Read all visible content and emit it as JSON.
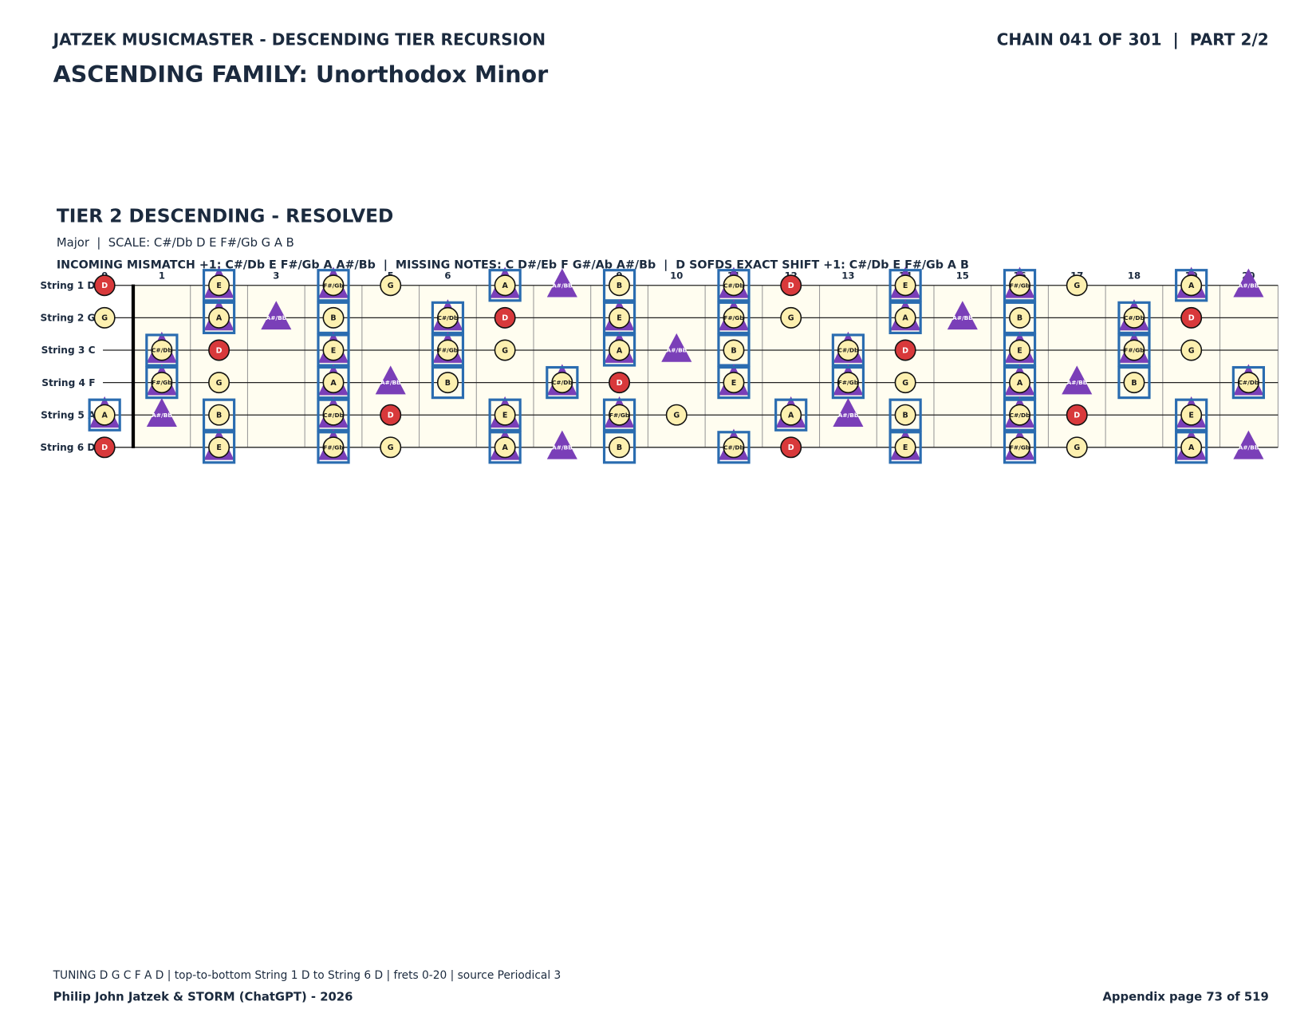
{
  "header": {
    "title": "JATZEK MUSICMASTER - DESCENDING TIER RECURSION",
    "chain": "CHAIN 041 OF 301  |  PART 2/2",
    "family": "ASCENDING FAMILY: Unorthodox Minor"
  },
  "section": {
    "title": "TIER 2 DESCENDING - RESOLVED",
    "scale": "Major  |  SCALE: C#/Db D E F#/Gb G A B",
    "analysis": "INCOMING MISMATCH +1: C#/Db E F#/Gb A A#/Bb  |  MISSING NOTES: C D#/Eb F G#/Ab A#/Bb  |  D SOFDS EXACT SHIFT +1: C#/Db E F#/Gb A B"
  },
  "fretboard": {
    "frets": [
      0,
      1,
      2,
      3,
      4,
      5,
      6,
      7,
      8,
      9,
      10,
      11,
      12,
      13,
      14,
      15,
      16,
      17,
      18,
      19,
      20
    ],
    "styles": {
      "root": {
        "shape": "circle",
        "fill": "#d8393b",
        "text": "#ffffff"
      },
      "plain": {
        "shape": "circle",
        "fill": "#fdf0b0",
        "text": "#1a1a1a"
      },
      "boxed": {
        "shape": "circle",
        "fill": "#fdf0b0",
        "text": "#1a1a1a",
        "box": "#2a6cb0"
      },
      "boxed-tri": {
        "shape": "circle",
        "fill": "#fdf0b0",
        "text": "#1a1a1a",
        "box": "#2a6cb0",
        "under": "#7a3fb8"
      },
      "tri": {
        "shape": "triangle",
        "fill": "#7a3fb8",
        "text": "#ffffff"
      }
    },
    "strings": [
      {
        "label": "String 1 D",
        "notes": [
          {
            "fret": 0,
            "note": "D",
            "style": "root"
          },
          {
            "fret": 2,
            "note": "E",
            "style": "boxed-tri"
          },
          {
            "fret": 4,
            "note": "F#/Gb",
            "style": "boxed-tri"
          },
          {
            "fret": 5,
            "note": "G",
            "style": "plain"
          },
          {
            "fret": 7,
            "note": "A",
            "style": "boxed-tri"
          },
          {
            "fret": 8,
            "note": "A#/Bb",
            "style": "tri"
          },
          {
            "fret": 9,
            "note": "B",
            "style": "boxed"
          },
          {
            "fret": 11,
            "note": "C#/Db",
            "style": "boxed-tri"
          },
          {
            "fret": 12,
            "note": "D",
            "style": "root"
          },
          {
            "fret": 14,
            "note": "E",
            "style": "boxed-tri"
          },
          {
            "fret": 16,
            "note": "F#/Gb",
            "style": "boxed-tri"
          },
          {
            "fret": 17,
            "note": "G",
            "style": "plain"
          },
          {
            "fret": 19,
            "note": "A",
            "style": "boxed-tri"
          },
          {
            "fret": 20,
            "note": "A#/Bb",
            "style": "tri"
          }
        ]
      },
      {
        "label": "String 2 G",
        "notes": [
          {
            "fret": 0,
            "note": "G",
            "style": "plain"
          },
          {
            "fret": 2,
            "note": "A",
            "style": "boxed-tri"
          },
          {
            "fret": 3,
            "note": "A#/Bb",
            "style": "tri"
          },
          {
            "fret": 4,
            "note": "B",
            "style": "boxed"
          },
          {
            "fret": 6,
            "note": "C#/Db",
            "style": "boxed-tri"
          },
          {
            "fret": 7,
            "note": "D",
            "style": "root"
          },
          {
            "fret": 9,
            "note": "E",
            "style": "boxed-tri"
          },
          {
            "fret": 11,
            "note": "F#/Gb",
            "style": "boxed-tri"
          },
          {
            "fret": 12,
            "note": "G",
            "style": "plain"
          },
          {
            "fret": 14,
            "note": "A",
            "style": "boxed-tri"
          },
          {
            "fret": 15,
            "note": "A#/Bb",
            "style": "tri"
          },
          {
            "fret": 16,
            "note": "B",
            "style": "boxed"
          },
          {
            "fret": 18,
            "note": "C#/Db",
            "style": "boxed-tri"
          },
          {
            "fret": 19,
            "note": "D",
            "style": "root"
          }
        ]
      },
      {
        "label": "String 3 C",
        "notes": [
          {
            "fret": 1,
            "note": "C#/Db",
            "style": "boxed-tri"
          },
          {
            "fret": 2,
            "note": "D",
            "style": "root"
          },
          {
            "fret": 4,
            "note": "E",
            "style": "boxed-tri"
          },
          {
            "fret": 6,
            "note": "F#/Gb",
            "style": "boxed-tri"
          },
          {
            "fret": 7,
            "note": "G",
            "style": "plain"
          },
          {
            "fret": 9,
            "note": "A",
            "style": "boxed-tri"
          },
          {
            "fret": 10,
            "note": "A#/Bb",
            "style": "tri"
          },
          {
            "fret": 11,
            "note": "B",
            "style": "boxed"
          },
          {
            "fret": 13,
            "note": "C#/Db",
            "style": "boxed-tri"
          },
          {
            "fret": 14,
            "note": "D",
            "style": "root"
          },
          {
            "fret": 16,
            "note": "E",
            "style": "boxed-tri"
          },
          {
            "fret": 18,
            "note": "F#/Gb",
            "style": "boxed-tri"
          },
          {
            "fret": 19,
            "note": "G",
            "style": "plain"
          }
        ]
      },
      {
        "label": "String 4 F",
        "notes": [
          {
            "fret": 1,
            "note": "F#/Gb",
            "style": "boxed-tri"
          },
          {
            "fret": 2,
            "note": "G",
            "style": "plain"
          },
          {
            "fret": 4,
            "note": "A",
            "style": "boxed-tri"
          },
          {
            "fret": 5,
            "note": "A#/Bb",
            "style": "tri"
          },
          {
            "fret": 6,
            "note": "B",
            "style": "boxed"
          },
          {
            "fret": 8,
            "note": "C#/Db",
            "style": "boxed-tri"
          },
          {
            "fret": 9,
            "note": "D",
            "style": "root"
          },
          {
            "fret": 11,
            "note": "E",
            "style": "boxed-tri"
          },
          {
            "fret": 13,
            "note": "F#/Gb",
            "style": "boxed-tri"
          },
          {
            "fret": 14,
            "note": "G",
            "style": "plain"
          },
          {
            "fret": 16,
            "note": "A",
            "style": "boxed-tri"
          },
          {
            "fret": 17,
            "note": "A#/Bb",
            "style": "tri"
          },
          {
            "fret": 18,
            "note": "B",
            "style": "boxed"
          },
          {
            "fret": 20,
            "note": "C#/Db",
            "style": "boxed-tri"
          }
        ]
      },
      {
        "label": "String 5 A",
        "notes": [
          {
            "fret": 0,
            "note": "A",
            "style": "boxed-tri"
          },
          {
            "fret": 1,
            "note": "A#/Bb",
            "style": "tri"
          },
          {
            "fret": 2,
            "note": "B",
            "style": "boxed"
          },
          {
            "fret": 4,
            "note": "C#/Db",
            "style": "boxed-tri"
          },
          {
            "fret": 5,
            "note": "D",
            "style": "root"
          },
          {
            "fret": 7,
            "note": "E",
            "style": "boxed-tri"
          },
          {
            "fret": 9,
            "note": "F#/Gb",
            "style": "boxed-tri"
          },
          {
            "fret": 10,
            "note": "G",
            "style": "plain"
          },
          {
            "fret": 12,
            "note": "A",
            "style": "boxed-tri"
          },
          {
            "fret": 13,
            "note": "A#/Bb",
            "style": "tri"
          },
          {
            "fret": 14,
            "note": "B",
            "style": "boxed"
          },
          {
            "fret": 16,
            "note": "C#/Db",
            "style": "boxed-tri"
          },
          {
            "fret": 17,
            "note": "D",
            "style": "root"
          },
          {
            "fret": 19,
            "note": "E",
            "style": "boxed-tri"
          }
        ]
      },
      {
        "label": "String 6 D",
        "notes": [
          {
            "fret": 0,
            "note": "D",
            "style": "root"
          },
          {
            "fret": 2,
            "note": "E",
            "style": "boxed-tri"
          },
          {
            "fret": 4,
            "note": "F#/Gb",
            "style": "boxed-tri"
          },
          {
            "fret": 5,
            "note": "G",
            "style": "plain"
          },
          {
            "fret": 7,
            "note": "A",
            "style": "boxed-tri"
          },
          {
            "fret": 8,
            "note": "A#/Bb",
            "style": "tri"
          },
          {
            "fret": 9,
            "note": "B",
            "style": "boxed"
          },
          {
            "fret": 11,
            "note": "C#/Db",
            "style": "boxed-tri"
          },
          {
            "fret": 12,
            "note": "D",
            "style": "root"
          },
          {
            "fret": 14,
            "note": "E",
            "style": "boxed-tri"
          },
          {
            "fret": 16,
            "note": "F#/Gb",
            "style": "boxed-tri"
          },
          {
            "fret": 17,
            "note": "G",
            "style": "plain"
          },
          {
            "fret": 19,
            "note": "A",
            "style": "boxed-tri"
          },
          {
            "fret": 20,
            "note": "A#/Bb",
            "style": "tri"
          }
        ]
      }
    ]
  },
  "footer": {
    "note": "TUNING D G C F A D | top-to-bottom String 1 D to String 6 D | frets 0-20 | source Periodical 3",
    "credit": "Philip John Jatzek & STORM (ChatGPT) - 2026",
    "page": "Appendix page 73 of 519"
  }
}
